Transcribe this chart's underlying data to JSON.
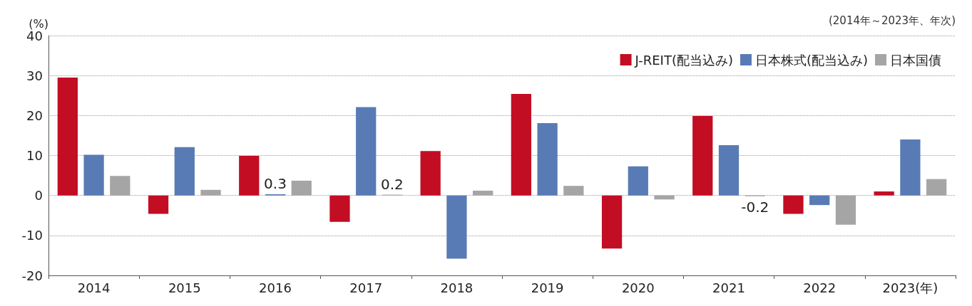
{
  "chart_data": {
    "type": "bar",
    "ylabel": "(%)",
    "annotations": [
      "(2014年～2023年、年次)"
    ],
    "categories": [
      "2014",
      "2015",
      "2016",
      "2017",
      "2018",
      "2019",
      "2020",
      "2021",
      "2022",
      "2023(年)"
    ],
    "series": [
      {
        "name": "J-REIT(配当込み)",
        "color": "#c30d23",
        "values": [
          29.5,
          -4.6,
          9.9,
          -6.6,
          11.1,
          25.4,
          -13.3,
          19.9,
          -4.6,
          1.0
        ]
      },
      {
        "name": "日本株式(配当込み)",
        "color": "#587bb5",
        "values": [
          10.2,
          12.1,
          0.3,
          22.1,
          -15.8,
          18.1,
          7.3,
          12.6,
          -2.4,
          14.0
        ],
        "value_labels": [
          null,
          null,
          "0.3",
          null,
          null,
          null,
          null,
          null,
          null,
          null
        ]
      },
      {
        "name": "日本国債",
        "color": "#a5a5a5",
        "values": [
          4.9,
          1.4,
          3.7,
          0.2,
          1.2,
          2.4,
          -1.0,
          -0.2,
          -7.3,
          4.1
        ],
        "value_labels": [
          null,
          null,
          null,
          "0.2",
          null,
          null,
          null,
          "-0.2",
          null,
          null
        ]
      }
    ],
    "ylim": [
      -20,
      40
    ],
    "yticks": [
      -20,
      -10,
      0,
      10,
      20,
      30,
      40
    ],
    "grid": "y",
    "legend": "top right"
  }
}
